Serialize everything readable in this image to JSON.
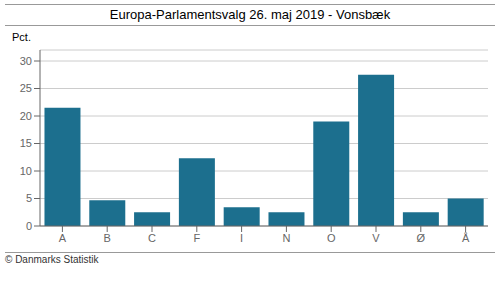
{
  "chart_data": {
    "type": "bar",
    "title": "Europa-Parlamentsvalg 26. maj 2019 - Vonsbæk",
    "categories": [
      "A",
      "B",
      "C",
      "F",
      "I",
      "N",
      "O",
      "V",
      "Ø",
      "Å"
    ],
    "values": [
      21.5,
      4.7,
      2.5,
      12.3,
      3.4,
      2.5,
      19.0,
      27.5,
      2.5,
      5.0
    ],
    "color": "#1c6f8e",
    "ylabel": "Pct.",
    "ylim": [
      0,
      32
    ],
    "yticks": [
      0,
      5,
      10,
      15,
      20,
      25,
      30
    ],
    "grid": true,
    "annotations": [
      "© Danmarks Statistik"
    ]
  }
}
